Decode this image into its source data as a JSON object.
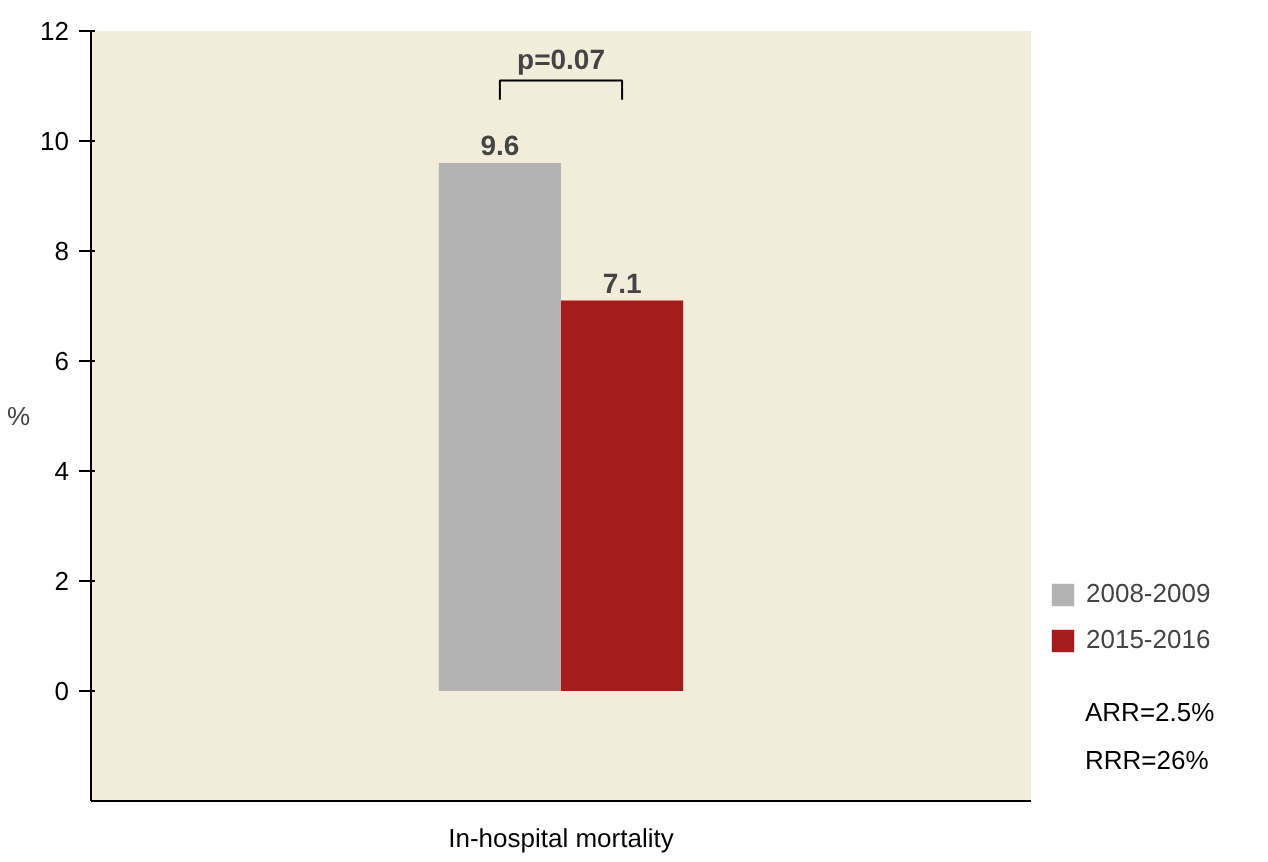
{
  "chart_data": {
    "type": "bar",
    "ylabel": "%",
    "categories": [
      "In-hospital mortality"
    ],
    "series": [
      {
        "name": "2008-2009",
        "color": "#b3b3b3",
        "values": [
          9.6
        ]
      },
      {
        "name": "2015-2016",
        "color": "#a61c1c",
        "values": [
          7.1
        ]
      }
    ],
    "ylim": [
      -2,
      12
    ],
    "yticks": [
      0,
      2,
      4,
      6,
      8,
      10,
      12
    ],
    "data_labels": true,
    "grid": false,
    "legend": "bottom right",
    "annotations": [
      "p=0.07",
      "ARR=2.5%",
      "RRR=26%"
    ]
  }
}
